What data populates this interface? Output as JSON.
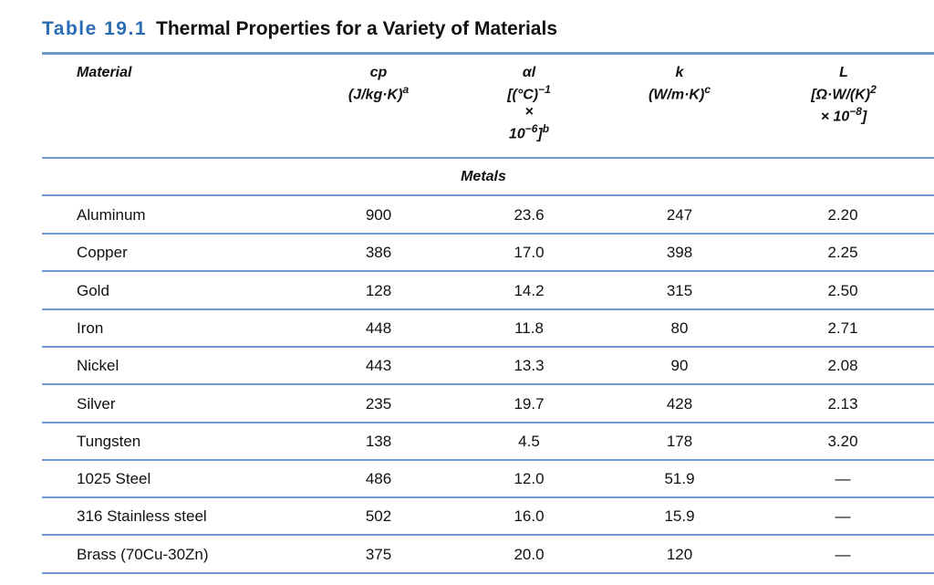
{
  "title": {
    "number": "Table 19.1",
    "text": "Thermal Properties for a Variety of Materials"
  },
  "headers": {
    "material": "Material",
    "cp": {
      "symbol": "cp",
      "unit": "(J/kg·K)",
      "note": "a"
    },
    "alpha": {
      "symbol": "αl",
      "unit": "[(°C)",
      "exp": "−1",
      "times": "×",
      "mult": "10",
      "mult_exp": "−6",
      "close": "]",
      "note": "b"
    },
    "k": {
      "symbol": "k",
      "unit": "(W/m·K)",
      "note": "c"
    },
    "L": {
      "symbol": "L",
      "unit": "[Ω·W/(K)",
      "exp": "2",
      "times": "× 10",
      "mult_exp": "−8",
      "close": "]"
    }
  },
  "section": "Metals",
  "rows": [
    {
      "material": "Aluminum",
      "cp": "900",
      "alpha": "23.6",
      "k": "247",
      "L": "2.20"
    },
    {
      "material": "Copper",
      "cp": "386",
      "alpha": "17.0",
      "k": "398",
      "L": "2.25"
    },
    {
      "material": "Gold",
      "cp": "128",
      "alpha": "14.2",
      "k": "315",
      "L": "2.50"
    },
    {
      "material": "Iron",
      "cp": "448",
      "alpha": "11.8",
      "k": "80",
      "L": "2.71"
    },
    {
      "material": "Nickel",
      "cp": "443",
      "alpha": "13.3",
      "k": "90",
      "L": "2.08"
    },
    {
      "material": "Silver",
      "cp": "235",
      "alpha": "19.7",
      "k": "428",
      "L": "2.13"
    },
    {
      "material": "Tungsten",
      "cp": "138",
      "alpha": "4.5",
      "k": "178",
      "L": "3.20"
    },
    {
      "material": "1025 Steel",
      "cp": "486",
      "alpha": "12.0",
      "k": "51.9",
      "L": "—"
    },
    {
      "material": "316 Stainless steel",
      "cp": "502",
      "alpha": "16.0",
      "k": "15.9",
      "L": "—"
    },
    {
      "material": "Brass (70Cu-30Zn)",
      "cp": "375",
      "alpha": "20.0",
      "k": "120",
      "L": "—"
    }
  ],
  "colors": {
    "accent": "#2a6db5",
    "rule": "#6f9ad0"
  }
}
